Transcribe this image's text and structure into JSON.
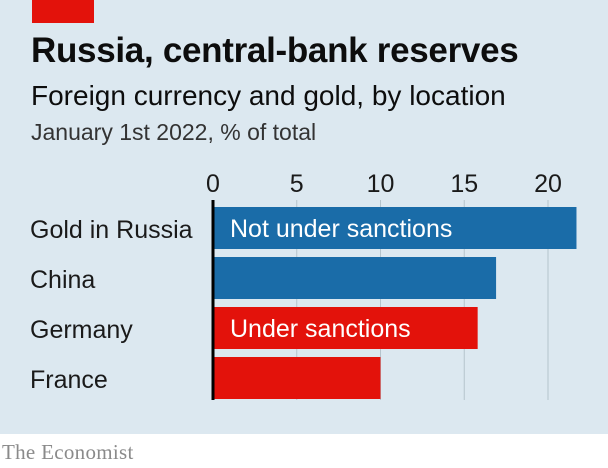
{
  "header": {
    "title": "Russia, central-bank reserves",
    "subtitle": "Foreign currency and gold, by location",
    "note": "January 1st 2022, % of total"
  },
  "footer": {
    "source": "The Economist"
  },
  "colors": {
    "background": "#dce8f0",
    "accent": "#e3120b",
    "blue": "#1a6ca8",
    "red": "#e3120b",
    "grid": "#b5c4cc"
  },
  "chart_data": {
    "type": "bar",
    "orientation": "horizontal",
    "title": "Russia, central-bank reserves",
    "subtitle": "Foreign currency and gold, by location",
    "xlabel": "",
    "ylabel": "",
    "xlim": [
      0,
      22
    ],
    "ticks": [
      0,
      5,
      10,
      15,
      20
    ],
    "grid": true,
    "categories": [
      "Gold in Russia",
      "China",
      "Germany",
      "France"
    ],
    "values": [
      21.7,
      16.9,
      15.8,
      10.0
    ],
    "colors": [
      "#1a6ca8",
      "#1a6ca8",
      "#e3120b",
      "#e3120b"
    ],
    "annotations": [
      {
        "category": "Gold in Russia",
        "text": "Not under sanctions"
      },
      {
        "category": "Germany",
        "text": "Under sanctions"
      }
    ]
  }
}
